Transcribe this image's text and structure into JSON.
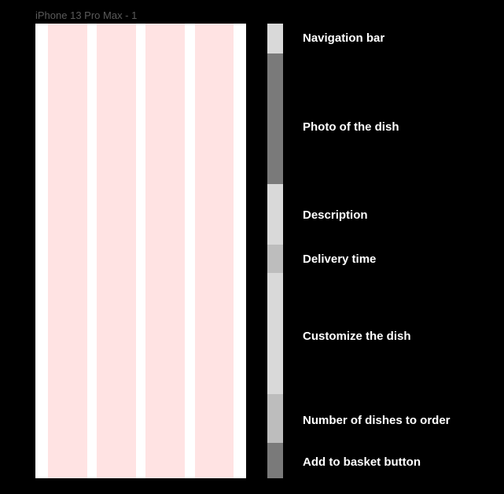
{
  "frame": {
    "title": "iPhone 13 Pro Max - 1"
  },
  "sections": [
    {
      "label": "Navigation bar",
      "color": "#d9d9d9"
    },
    {
      "label": "Photo of the dish",
      "color": "#7a7a7a"
    },
    {
      "label": "Description",
      "color": "#d9d9d9"
    },
    {
      "label": "Delivery time",
      "color": "#bdbdbd"
    },
    {
      "label": "Customize the dish",
      "color": "#d9d9d9"
    },
    {
      "label": "Number of dishes to order",
      "color": "#bdbdbd"
    },
    {
      "label": "Add to basket button",
      "color": "#7a7a7a"
    }
  ],
  "colors": {
    "background": "#000000",
    "frame": "#ffffff",
    "grid_column": "#ffe3e3"
  }
}
